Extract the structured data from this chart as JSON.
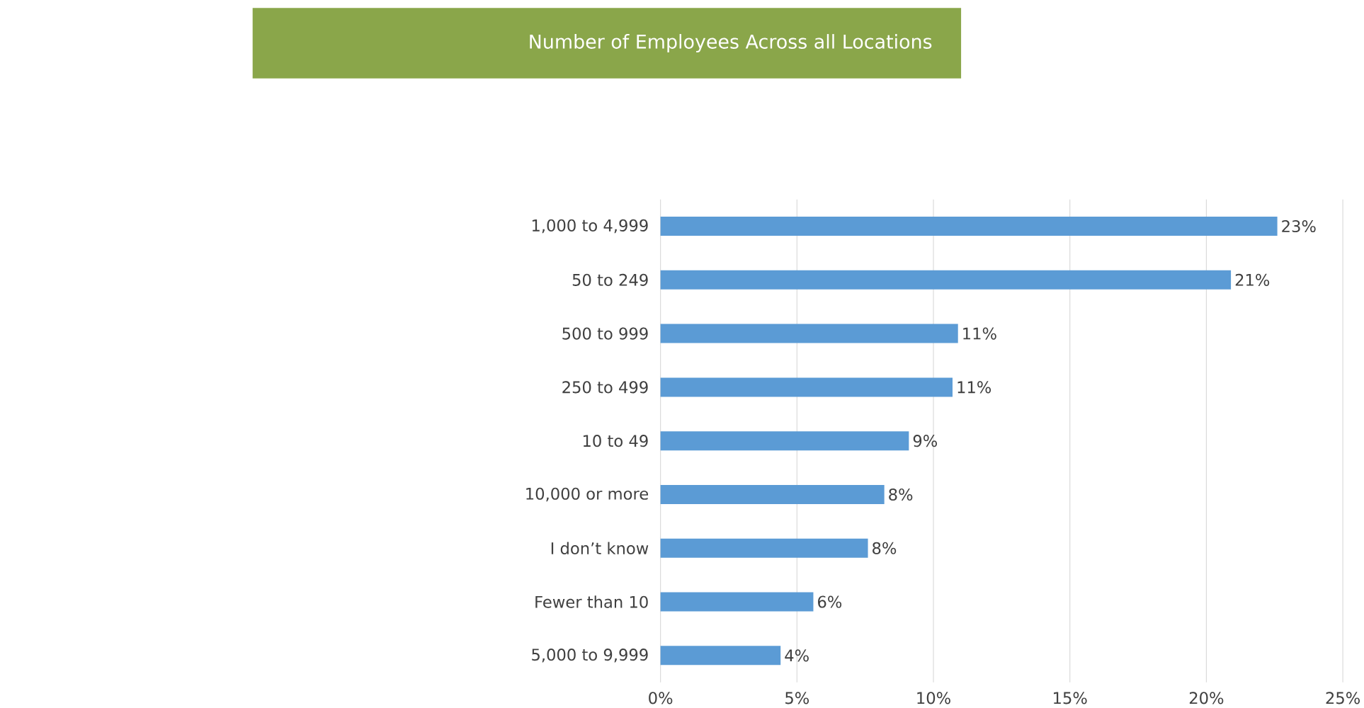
{
  "chart_data": {
    "type": "bar",
    "orientation": "horizontal",
    "title": "Number of Employees Across all Locations",
    "categories": [
      "1,000 to 4,999",
      "50 to 249",
      "500 to 999",
      "250 to 499",
      "10 to 49",
      "10,000 or more",
      "I don’t know",
      "Fewer than 10",
      "5,000 to 9,999"
    ],
    "values": [
      22.6,
      20.9,
      10.9,
      10.7,
      9.1,
      8.2,
      7.6,
      5.6,
      4.4
    ],
    "value_labels": [
      "23%",
      "21%",
      "11%",
      "11%",
      "9%",
      "8%",
      "8%",
      "6%",
      "4%"
    ],
    "color": "#5b9bd5",
    "xlim": [
      0,
      25
    ],
    "xticks": [
      {
        "value": 0,
        "label": "0%"
      },
      {
        "value": 5,
        "label": "5%"
      },
      {
        "value": 10,
        "label": "10%"
      },
      {
        "value": 15,
        "label": "15%"
      },
      {
        "value": 20,
        "label": "20%"
      },
      {
        "value": 25,
        "label": "25%"
      }
    ],
    "grid": "x"
  }
}
